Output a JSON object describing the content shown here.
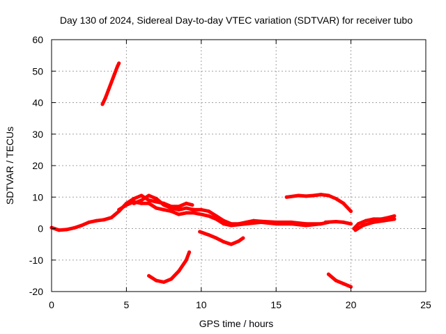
{
  "chart_data": {
    "type": "line",
    "title": "Day 130 of 2024, Sidereal Day-to-day VTEC variation (SDTVAR) for receiver tubo",
    "xlabel": "GPS time / hours",
    "ylabel": "SDTVAR / TECUs",
    "xlim": [
      0,
      25
    ],
    "ylim": [
      -20,
      60
    ],
    "xticks": [
      0,
      5,
      10,
      15,
      20,
      25
    ],
    "yticks": [
      -20,
      -10,
      0,
      10,
      20,
      30,
      40,
      50,
      60
    ],
    "grid": true,
    "color": "#ff0000",
    "series": [
      {
        "name": "arc-main-1",
        "points": [
          [
            0,
            0.3
          ],
          [
            0.5,
            -0.5
          ],
          [
            1,
            -0.3
          ],
          [
            1.5,
            0.2
          ],
          [
            2,
            1
          ],
          [
            2.5,
            2
          ],
          [
            3,
            2.5
          ],
          [
            3.5,
            2.8
          ],
          [
            4,
            3.5
          ],
          [
            4.5,
            5.5
          ],
          [
            5,
            8
          ],
          [
            5.5,
            9.5
          ],
          [
            6,
            10.5
          ],
          [
            6.5,
            9
          ],
          [
            7,
            8.5
          ],
          [
            7.5,
            8
          ],
          [
            8,
            7
          ],
          [
            8.5,
            7
          ],
          [
            9,
            8
          ],
          [
            9.4,
            7.5
          ]
        ]
      },
      {
        "name": "arc-main-2",
        "points": [
          [
            5.5,
            8
          ],
          [
            6,
            9
          ],
          [
            6.5,
            10.5
          ],
          [
            7,
            9.5
          ],
          [
            7.5,
            7.5
          ],
          [
            8,
            6.5
          ],
          [
            8.5,
            6
          ],
          [
            9,
            6.5
          ],
          [
            9.5,
            6
          ],
          [
            10,
            6
          ],
          [
            10.5,
            5.5
          ],
          [
            11,
            4
          ],
          [
            11.5,
            2.5
          ],
          [
            12,
            1.5
          ],
          [
            12.5,
            1.5
          ],
          [
            13,
            2
          ],
          [
            13.5,
            2.5
          ],
          [
            14,
            2.3
          ],
          [
            15,
            2
          ],
          [
            16,
            2
          ],
          [
            17,
            1.5
          ],
          [
            18,
            1.5
          ],
          [
            18.5,
            2
          ]
        ]
      },
      {
        "name": "arc-main-3",
        "points": [
          [
            4.5,
            6
          ],
          [
            5,
            7.5
          ],
          [
            5.5,
            8.5
          ],
          [
            6,
            8
          ],
          [
            6.5,
            8
          ],
          [
            7,
            6.5
          ],
          [
            7.5,
            6
          ],
          [
            8,
            5.5
          ],
          [
            8.5,
            4.5
          ],
          [
            9,
            5
          ],
          [
            9.5,
            5
          ],
          [
            10,
            4.5
          ],
          [
            10.5,
            4
          ],
          [
            11,
            3
          ],
          [
            11.5,
            1.5
          ],
          [
            12,
            1
          ],
          [
            13,
            1.5
          ],
          [
            14,
            2
          ],
          [
            15,
            1.5
          ],
          [
            16,
            1.5
          ],
          [
            17,
            1
          ],
          [
            18,
            1.5
          ]
        ]
      },
      {
        "name": "arc-late",
        "points": [
          [
            18.3,
            2
          ],
          [
            19,
            2.2
          ],
          [
            19.5,
            2
          ],
          [
            20,
            1.5
          ]
        ]
      },
      {
        "name": "arc-end",
        "points": [
          [
            20.2,
            0
          ],
          [
            20.5,
            1.5
          ],
          [
            21,
            2.5
          ],
          [
            21.5,
            3
          ],
          [
            22,
            3
          ],
          [
            22.5,
            3.5
          ],
          [
            22.9,
            4
          ]
        ]
      },
      {
        "name": "arc-end-b",
        "points": [
          [
            20.3,
            -0.5
          ],
          [
            20.8,
            1
          ],
          [
            21.5,
            2
          ],
          [
            22.2,
            2.5
          ],
          [
            22.9,
            3
          ]
        ]
      },
      {
        "name": "arc-high",
        "points": [
          [
            3.4,
            39.5
          ],
          [
            3.6,
            41.5
          ],
          [
            3.8,
            44
          ],
          [
            4,
            46.5
          ],
          [
            4.2,
            49
          ],
          [
            4.4,
            51.5
          ],
          [
            4.5,
            52.5
          ]
        ]
      },
      {
        "name": "arc-upper-right",
        "points": [
          [
            15.7,
            10
          ],
          [
            16.5,
            10.5
          ],
          [
            17,
            10.3
          ],
          [
            17.5,
            10.5
          ],
          [
            18,
            10.8
          ],
          [
            18.5,
            10.5
          ],
          [
            19,
            9.5
          ],
          [
            19.5,
            8
          ],
          [
            20,
            5.5
          ]
        ]
      },
      {
        "name": "arc-dip-left",
        "points": [
          [
            6.5,
            -15
          ],
          [
            7,
            -16.5
          ],
          [
            7.5,
            -17
          ],
          [
            8,
            -16
          ],
          [
            8.5,
            -13.5
          ],
          [
            9,
            -10
          ],
          [
            9.2,
            -7.5
          ]
        ]
      },
      {
        "name": "arc-dip-mid",
        "points": [
          [
            9.9,
            -1
          ],
          [
            10.5,
            -2
          ],
          [
            11,
            -3
          ],
          [
            11.5,
            -4.2
          ],
          [
            12,
            -5
          ],
          [
            12.5,
            -4
          ],
          [
            12.8,
            -3
          ]
        ]
      },
      {
        "name": "arc-dip-right",
        "points": [
          [
            18.5,
            -14.5
          ],
          [
            19,
            -16.5
          ],
          [
            19.5,
            -17.5
          ],
          [
            20,
            -18.5
          ]
        ]
      }
    ]
  }
}
